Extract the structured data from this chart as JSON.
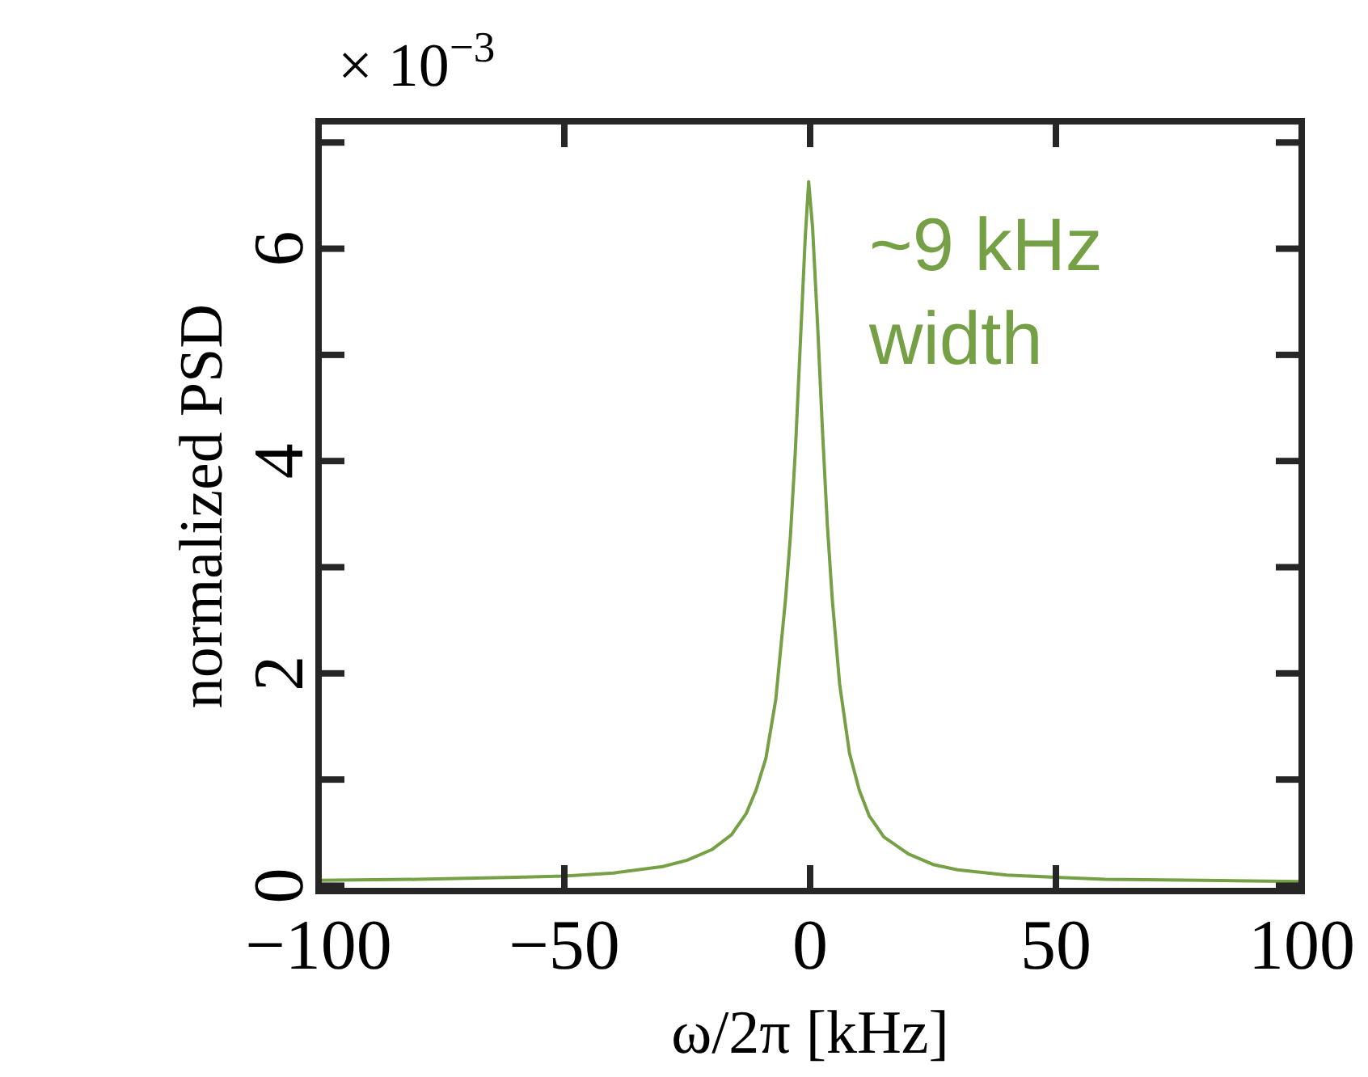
{
  "chart_data": {
    "type": "line",
    "xlabel": "ω/2π [kHz]",
    "ylabel": "normalized PSD",
    "annotations": [
      "× 10$^{−3}$",
      "~9 kHz\nwidth"
    ],
    "x": [
      -100,
      -80,
      -60,
      -50,
      -40,
      -30,
      -25,
      -20,
      -16,
      -13,
      -11,
      -9,
      -7,
      -5,
      -4,
      -3,
      -2,
      -1,
      -0.3,
      0.5,
      1.5,
      2.5,
      3.5,
      4.5,
      6,
      8,
      10,
      12,
      15,
      20,
      25,
      30,
      40,
      50,
      60,
      80,
      100
    ],
    "series": [
      {
        "color": "#76a045",
        "values": [
          0.05,
          0.06,
          0.08,
          0.09,
          0.12,
          0.18,
          0.24,
          0.34,
          0.48,
          0.68,
          0.9,
          1.2,
          1.75,
          2.7,
          3.3,
          4.1,
          5.1,
          6.1,
          6.63,
          6.2,
          5.3,
          4.3,
          3.4,
          2.7,
          1.9,
          1.25,
          0.9,
          0.66,
          0.46,
          0.3,
          0.2,
          0.15,
          0.1,
          0.08,
          0.06,
          0.05,
          0.04
        ]
      }
    ],
    "xlim": [
      -100,
      100
    ],
    "xticks": [
      -100,
      -50,
      0,
      50,
      100
    ],
    "ylim": [
      -0.05,
      7.2
    ],
    "yticks": [
      0,
      {
        "value": 1,
        "label": null
      },
      2,
      {
        "value": 3,
        "label": null
      },
      4,
      {
        "value": 5,
        "label": null
      },
      6,
      {
        "value": 7,
        "label": null
      }
    ],
    "grid": false,
    "marker": "none",
    "line_style": "solid"
  }
}
